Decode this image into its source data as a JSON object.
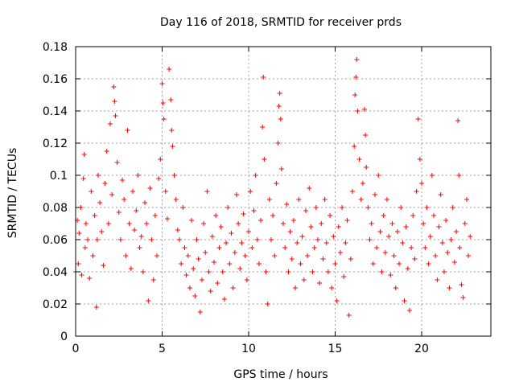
{
  "chart_data": {
    "type": "scatter",
    "title": "Day 116 of 2018, SRMTID for receiver prds",
    "xlabel": "GPS time / hours",
    "ylabel": "SRMTID / TECUs",
    "xlim": [
      0,
      24
    ],
    "ylim": [
      0,
      0.18
    ],
    "xticks": [
      0,
      5,
      10,
      15,
      20
    ],
    "xtick_labels": [
      "0",
      "5",
      "10",
      "15",
      "20"
    ],
    "yticks": [
      0,
      0.02,
      0.04,
      0.06,
      0.08,
      0.1,
      0.12,
      0.14,
      0.16,
      0.18
    ],
    "ytick_labels": [
      "0",
      "0.02",
      "0.04",
      "0.06",
      "0.08",
      "0.1",
      "0.12",
      "0.14",
      "0.16",
      "0.18"
    ],
    "grid": true,
    "marker": "+",
    "color": "#ff0000",
    "series": [
      {
        "name": "SRMTID",
        "points": [
          [
            0.0,
            0.04
          ],
          [
            0.1,
            0.072
          ],
          [
            0.15,
            0.045
          ],
          [
            0.2,
            0.064
          ],
          [
            0.3,
            0.08
          ],
          [
            0.35,
            0.038
          ],
          [
            0.45,
            0.098
          ],
          [
            0.5,
            0.113
          ],
          [
            0.55,
            0.055
          ],
          [
            0.6,
            0.07
          ],
          [
            0.7,
            0.06
          ],
          [
            0.8,
            0.036
          ],
          [
            0.9,
            0.09
          ],
          [
            1.0,
            0.05
          ],
          [
            1.1,
            0.075
          ],
          [
            1.2,
            0.018
          ],
          [
            1.25,
            0.06
          ],
          [
            1.3,
            0.1
          ],
          [
            1.4,
            0.083
          ],
          [
            1.5,
            0.065
          ],
          [
            1.6,
            0.044
          ],
          [
            1.7,
            0.095
          ],
          [
            1.8,
            0.115
          ],
          [
            1.9,
            0.07
          ],
          [
            2.0,
            0.132
          ],
          [
            2.1,
            0.088
          ],
          [
            2.2,
            0.155
          ],
          [
            2.25,
            0.146
          ],
          [
            2.3,
            0.137
          ],
          [
            2.4,
            0.108
          ],
          [
            2.5,
            0.077
          ],
          [
            2.6,
            0.06
          ],
          [
            2.7,
            0.097
          ],
          [
            2.8,
            0.085
          ],
          [
            2.9,
            0.05
          ],
          [
            3.0,
            0.128
          ],
          [
            3.1,
            0.07
          ],
          [
            3.2,
            0.042
          ],
          [
            3.3,
            0.09
          ],
          [
            3.4,
            0.066
          ],
          [
            3.5,
            0.078
          ],
          [
            3.6,
            0.1
          ],
          [
            3.7,
            0.055
          ],
          [
            3.8,
            0.062
          ],
          [
            3.9,
            0.04
          ],
          [
            4.0,
            0.083
          ],
          [
            4.1,
            0.07
          ],
          [
            4.2,
            0.022
          ],
          [
            4.3,
            0.092
          ],
          [
            4.4,
            0.06
          ],
          [
            4.5,
            0.035
          ],
          [
            4.6,
            0.075
          ],
          [
            4.7,
            0.05
          ],
          [
            4.8,
            0.098
          ],
          [
            4.9,
            0.11
          ],
          [
            5.0,
            0.157
          ],
          [
            5.05,
            0.145
          ],
          [
            5.1,
            0.135
          ],
          [
            5.2,
            0.09
          ],
          [
            5.3,
            0.073
          ],
          [
            5.4,
            0.166
          ],
          [
            5.5,
            0.147
          ],
          [
            5.55,
            0.128
          ],
          [
            5.6,
            0.118
          ],
          [
            5.7,
            0.1
          ],
          [
            5.8,
            0.085
          ],
          [
            5.9,
            0.066
          ],
          [
            6.0,
            0.06
          ],
          [
            6.1,
            0.045
          ],
          [
            6.2,
            0.08
          ],
          [
            6.3,
            0.055
          ],
          [
            6.4,
            0.038
          ],
          [
            6.5,
            0.05
          ],
          [
            6.6,
            0.03
          ],
          [
            6.7,
            0.072
          ],
          [
            6.8,
            0.042
          ],
          [
            6.9,
            0.025
          ],
          [
            7.0,
            0.06
          ],
          [
            7.1,
            0.048
          ],
          [
            7.2,
            0.015
          ],
          [
            7.3,
            0.035
          ],
          [
            7.4,
            0.07
          ],
          [
            7.5,
            0.052
          ],
          [
            7.6,
            0.09
          ],
          [
            7.7,
            0.04
          ],
          [
            7.8,
            0.028
          ],
          [
            7.9,
            0.062
          ],
          [
            8.0,
            0.046
          ],
          [
            8.1,
            0.075
          ],
          [
            8.2,
            0.033
          ],
          [
            8.3,
            0.055
          ],
          [
            8.4,
            0.068
          ],
          [
            8.5,
            0.04
          ],
          [
            8.6,
            0.023
          ],
          [
            8.7,
            0.058
          ],
          [
            8.8,
            0.08
          ],
          [
            8.9,
            0.045
          ],
          [
            9.0,
            0.064
          ],
          [
            9.1,
            0.03
          ],
          [
            9.2,
            0.052
          ],
          [
            9.3,
            0.088
          ],
          [
            9.4,
            0.07
          ],
          [
            9.5,
            0.042
          ],
          [
            9.6,
            0.058
          ],
          [
            9.7,
            0.076
          ],
          [
            9.8,
            0.05
          ],
          [
            9.9,
            0.035
          ],
          [
            10.0,
            0.065
          ],
          [
            10.1,
            0.09
          ],
          [
            10.2,
            0.055
          ],
          [
            10.3,
            0.078
          ],
          [
            10.4,
            0.1
          ],
          [
            10.5,
            0.06
          ],
          [
            10.6,
            0.045
          ],
          [
            10.7,
            0.072
          ],
          [
            10.8,
            0.13
          ],
          [
            10.85,
            0.161
          ],
          [
            10.9,
            0.11
          ],
          [
            11.0,
            0.04
          ],
          [
            11.1,
            0.02
          ],
          [
            11.2,
            0.085
          ],
          [
            11.3,
            0.06
          ],
          [
            11.4,
            0.075
          ],
          [
            11.5,
            0.05
          ],
          [
            11.6,
            0.095
          ],
          [
            11.7,
            0.12
          ],
          [
            11.75,
            0.143
          ],
          [
            11.8,
            0.151
          ],
          [
            11.85,
            0.135
          ],
          [
            11.9,
            0.104
          ],
          [
            12.0,
            0.07
          ],
          [
            12.1,
            0.055
          ],
          [
            12.2,
            0.082
          ],
          [
            12.3,
            0.04
          ],
          [
            12.4,
            0.065
          ],
          [
            12.5,
            0.048
          ],
          [
            12.6,
            0.072
          ],
          [
            12.7,
            0.03
          ],
          [
            12.8,
            0.058
          ],
          [
            12.9,
            0.085
          ],
          [
            13.0,
            0.045
          ],
          [
            13.1,
            0.062
          ],
          [
            13.2,
            0.035
          ],
          [
            13.3,
            0.078
          ],
          [
            13.4,
            0.05
          ],
          [
            13.5,
            0.092
          ],
          [
            13.6,
            0.068
          ],
          [
            13.7,
            0.04
          ],
          [
            13.8,
            0.055
          ],
          [
            13.9,
            0.08
          ],
          [
            14.0,
            0.06
          ],
          [
            14.1,
            0.033
          ],
          [
            14.2,
            0.07
          ],
          [
            14.3,
            0.048
          ],
          [
            14.4,
            0.085
          ],
          [
            14.5,
            0.058
          ],
          [
            14.6,
            0.04
          ],
          [
            14.7,
            0.075
          ],
          [
            14.8,
            0.03
          ],
          [
            14.9,
            0.062
          ],
          [
            15.0,
            0.045
          ],
          [
            15.1,
            0.022
          ],
          [
            15.2,
            0.068
          ],
          [
            15.3,
            0.052
          ],
          [
            15.4,
            0.08
          ],
          [
            15.5,
            0.037
          ],
          [
            15.6,
            0.058
          ],
          [
            15.7,
            0.072
          ],
          [
            15.8,
            0.013
          ],
          [
            15.9,
            0.048
          ],
          [
            16.0,
            0.09
          ],
          [
            16.1,
            0.118
          ],
          [
            16.15,
            0.15
          ],
          [
            16.2,
            0.161
          ],
          [
            16.25,
            0.172
          ],
          [
            16.3,
            0.14
          ],
          [
            16.4,
            0.11
          ],
          [
            16.5,
            0.085
          ],
          [
            16.6,
            0.095
          ],
          [
            16.7,
            0.141
          ],
          [
            16.75,
            0.125
          ],
          [
            16.8,
            0.105
          ],
          [
            16.9,
            0.08
          ],
          [
            17.0,
            0.06
          ],
          [
            17.1,
            0.07
          ],
          [
            17.2,
            0.045
          ],
          [
            17.3,
            0.088
          ],
          [
            17.4,
            0.055
          ],
          [
            17.5,
            0.1
          ],
          [
            17.6,
            0.065
          ],
          [
            17.7,
            0.04
          ],
          [
            17.8,
            0.075
          ],
          [
            17.9,
            0.052
          ],
          [
            18.0,
            0.085
          ],
          [
            18.1,
            0.062
          ],
          [
            18.2,
            0.038
          ],
          [
            18.3,
            0.07
          ],
          [
            18.4,
            0.05
          ],
          [
            18.5,
            0.03
          ],
          [
            18.6,
            0.065
          ],
          [
            18.7,
            0.045
          ],
          [
            18.8,
            0.08
          ],
          [
            18.9,
            0.058
          ],
          [
            19.0,
            0.022
          ],
          [
            19.1,
            0.068
          ],
          [
            19.2,
            0.042
          ],
          [
            19.3,
            0.016
          ],
          [
            19.4,
            0.055
          ],
          [
            19.5,
            0.075
          ],
          [
            19.6,
            0.048
          ],
          [
            19.7,
            0.09
          ],
          [
            19.8,
            0.135
          ],
          [
            19.9,
            0.11
          ],
          [
            20.0,
            0.095
          ],
          [
            20.1,
            0.07
          ],
          [
            20.2,
            0.055
          ],
          [
            20.3,
            0.08
          ],
          [
            20.4,
            0.045
          ],
          [
            20.5,
            0.062
          ],
          [
            20.6,
            0.1
          ],
          [
            20.7,
            0.075
          ],
          [
            20.8,
            0.05
          ],
          [
            20.9,
            0.035
          ],
          [
            21.0,
            0.068
          ],
          [
            21.1,
            0.088
          ],
          [
            21.2,
            0.058
          ],
          [
            21.3,
            0.04
          ],
          [
            21.4,
            0.072
          ],
          [
            21.5,
            0.052
          ],
          [
            21.6,
            0.03
          ],
          [
            21.7,
            0.06
          ],
          [
            21.8,
            0.08
          ],
          [
            21.9,
            0.046
          ],
          [
            22.0,
            0.065
          ],
          [
            22.1,
            0.134
          ],
          [
            22.15,
            0.1
          ],
          [
            22.2,
            0.055
          ],
          [
            22.3,
            0.032
          ],
          [
            22.4,
            0.024
          ],
          [
            22.5,
            0.07
          ],
          [
            22.6,
            0.085
          ],
          [
            22.7,
            0.05
          ],
          [
            22.8,
            0.062
          ]
        ]
      }
    ]
  }
}
